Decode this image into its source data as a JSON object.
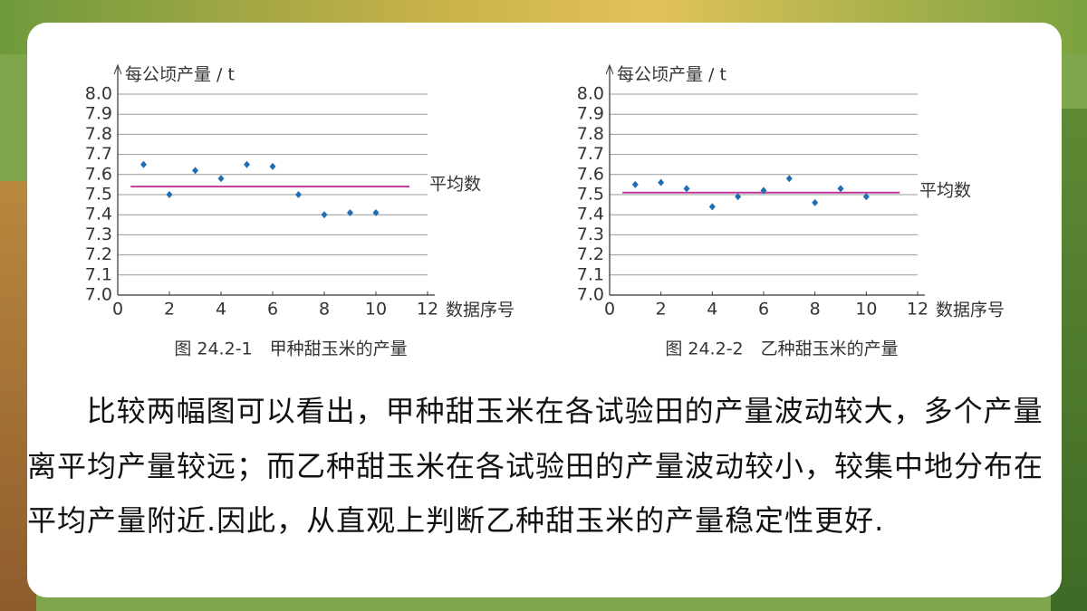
{
  "chart_data": [
    {
      "type": "scatter",
      "ylabel": "每公顷产量 / t",
      "xlabel": "数据序号",
      "caption": "图 24.2-1　甲种甜玉米的产量",
      "x": [
        1,
        2,
        3,
        4,
        5,
        6,
        7,
        8,
        9,
        10
      ],
      "series": [
        {
          "color": "#1f6db3",
          "values": [
            7.65,
            7.5,
            7.62,
            7.58,
            7.65,
            7.64,
            7.5,
            7.4,
            7.41,
            7.41
          ]
        }
      ],
      "mean": {
        "value": 7.54,
        "label": "平均数",
        "color": "#c2399a"
      },
      "xlim": [
        0,
        12
      ],
      "xticks": [
        0,
        2,
        4,
        6,
        8,
        10,
        12
      ],
      "ylim": [
        7.0,
        8.0
      ],
      "yticks": [
        {
          "value": 7.0,
          "label": "7.0"
        },
        7.1,
        7.2,
        7.3,
        7.4,
        7.5,
        7.6,
        7.7,
        7.8,
        7.9,
        {
          "value": 8.0,
          "label": "8.0"
        }
      ],
      "grid": true
    },
    {
      "type": "scatter",
      "ylabel": "每公顷产量 / t",
      "xlabel": "数据序号",
      "caption": "图 24.2-2　乙种甜玉米的产量",
      "x": [
        1,
        2,
        3,
        4,
        5,
        6,
        7,
        8,
        9,
        10
      ],
      "series": [
        {
          "color": "#1f6db3",
          "values": [
            7.55,
            7.56,
            7.53,
            7.44,
            7.49,
            7.52,
            7.58,
            7.46,
            7.53,
            7.49
          ]
        }
      ],
      "mean": {
        "value": 7.51,
        "label": "平均数",
        "color": "#c2399a"
      },
      "xlim": [
        0,
        12
      ],
      "xticks": [
        0,
        2,
        4,
        6,
        8,
        10,
        12
      ],
      "ylim": [
        7.0,
        8.0
      ],
      "yticks": [
        {
          "value": 7.0,
          "label": "7.0"
        },
        7.1,
        7.2,
        7.3,
        7.4,
        7.5,
        7.6,
        7.7,
        7.8,
        7.9,
        {
          "value": 8.0,
          "label": "8.0"
        }
      ],
      "grid": true
    }
  ],
  "paragraph": "比较两幅图可以看出，甲种甜玉米在各试验田的产量波动较大，多个产量离平均产量较远；而乙种甜玉米在各试验田的产量波动较小，较集中地分布在平均产量附近.因此，从直观上判断乙种甜玉米的产量稳定性更好."
}
